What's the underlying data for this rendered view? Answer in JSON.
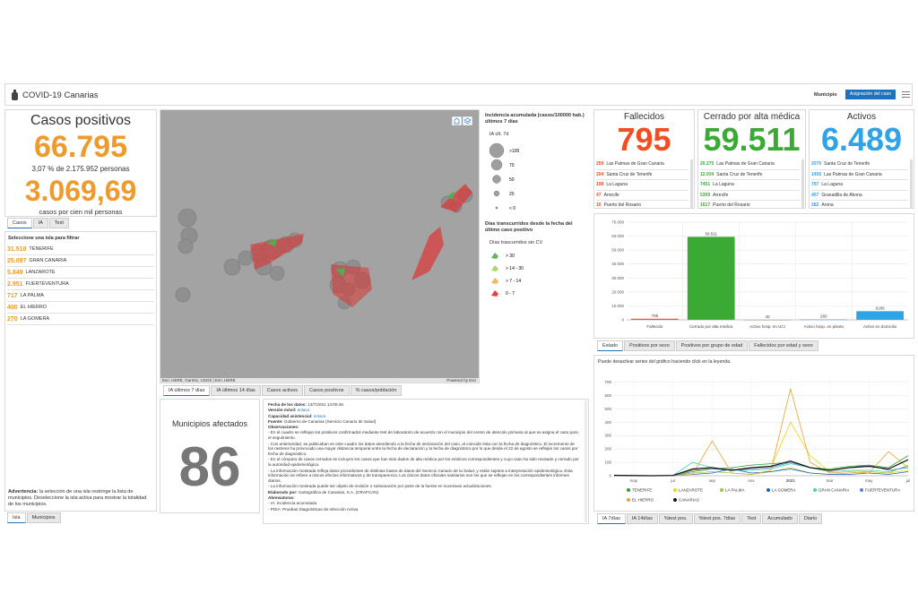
{
  "header": {
    "title": "COVID-19 Canarias",
    "filter_label": "Municipio",
    "button": "Asignación del caso"
  },
  "casos": {
    "title": "Casos positivos",
    "total": "66.795",
    "pct": "3,07 % de 2.175.952 personas",
    "rate": "3.069,69",
    "rate_label": "casos por cien mil personas",
    "color": "#ef9a2d",
    "tabs": [
      "Casos",
      "IA",
      "Test"
    ]
  },
  "islands": {
    "title": "Seleccione una isla para filtrar",
    "color": "#ef9a2d",
    "rows": [
      [
        "31.510",
        "TENERIFE"
      ],
      [
        "25.097",
        "GRAN CANARIA"
      ],
      [
        "5.849",
        "LANZAROTE"
      ],
      [
        "2.951",
        "FUERTEVENTURA"
      ],
      [
        "717",
        "LA PALMA"
      ],
      [
        "400",
        "EL HIERRO"
      ],
      [
        "270",
        "LA GOMERA"
      ]
    ],
    "warning_label": "Advertencia:",
    "warning": "la selección de una isla restringe la lista de municipios. Deseleccione la isla activa para mostrar la totalidad de los municipios.",
    "tabs": [
      "Isla",
      "Municipios"
    ]
  },
  "map": {
    "legend1_title": "Incidencia acumulada (casos/100000 hab.) últimos 7 días",
    "legend1_sub": "IA últ. 7d",
    "legend1_items": [
      ">100",
      "70",
      "50",
      "20",
      "< 0"
    ],
    "legend2_title": "Días transcurridos desde la fecha del último caso positivo",
    "legend2_sub": "Días trascurridos sin CV",
    "legend2_items": [
      {
        "label": "> 30",
        "color": "#5cb85c"
      },
      {
        "label": "> 14 - 30",
        "color": "#a9d86e"
      },
      {
        "label": "> 7 - 14",
        "color": "#f6b26b"
      },
      {
        "label": "0 - 7",
        "color": "#e8423f"
      }
    ],
    "attribution": "Esri, HERE, Garmin, USGS | Esri, HERE",
    "powered": "Powered by Esri",
    "tabs": [
      "IA últimos 7 días",
      "IA últimos 14 días",
      "Casos activos",
      "Casos positivos",
      "% casos/población"
    ]
  },
  "municipios": {
    "title": "Municipios afectados",
    "value": "86"
  },
  "info": {
    "lines": [
      {
        "label": "Fecha de los datos:",
        "text": "14/7/2021 14:00:48."
      },
      {
        "label": "Versión móvil:",
        "text": "enlace."
      },
      {
        "label": "Capacidad asistencial:",
        "text": "enlace."
      },
      {
        "label": "Fuente:",
        "text": "Gobierno de Canarias (Servicio Canario de Salud)"
      },
      {
        "label": "Observaciones:"
      },
      {
        "text": "- En el cuadro se reflejan los positivos confirmados mediante test de laboratorio de acuerdo con el municipio del centro de atención primaria al que se asigna el caso para el seguimiento."
      },
      {
        "text": "- Con anterioridad, se publicaban en este cuadro los datos atendiendo a la fecha de declaración del caso, al coincidir ésta con la fecha de diagnóstico. El incremento de los rastreos ha provocado una mayor distancia temporal entre la fecha de declaración y la fecha de diagnóstico por lo que desde el 22 de agosto se reflejan los casos por fecha de diagnóstico."
      },
      {
        "text": "- En el cómputo de casos cerrados se incluyen los casos que han sido dados de alta médica por los médicos correspondientes y cuyo caso ha sido revisado y cerrado por la autoridad epidemiológica."
      },
      {
        "text": "- La información mostrada refleja datos procedentes de distintas bases de datos del Servicio Canario de la Salud, y están sujetos a interpretación epidemiológica. Esta información se refiere a únicos efectos informativos y de transparencia. Los únicos datos oficiales sanitarios son los que se reflejan en los correspondientes informes diarios."
      },
      {
        "text": "- La información mostrada puede ser objeto de revisión o subsanación por parte de la fuente en sucesivas actualizaciones."
      },
      {
        "label": "Elaborado por:",
        "text": "Cartográfica de Canarias, S.A. (GRAFCAN)"
      },
      {
        "label": "Abreviaturas:"
      },
      {
        "text": "- IA: Incidencia acumulada"
      },
      {
        "text": "- PDIA: Pruebas Diagnósticas de Infección Activa"
      }
    ]
  },
  "kpis": [
    {
      "title": "Fallecidos",
      "value": "795",
      "color": "#f04e23",
      "rows": [
        [
          "259",
          "Las Palmas de Gran Canaria"
        ],
        [
          "204",
          "Santa Cruz de Tenerife"
        ],
        [
          "198",
          "La Laguna"
        ],
        [
          "47",
          "Arrecife"
        ],
        [
          "10",
          "Puerto del Rosario"
        ]
      ]
    },
    {
      "title": "Cerrado por alta médica",
      "value": "59.511",
      "color": "#3aaa35",
      "rows": [
        [
          "20.275",
          "Las Palmas de Gran Canaria"
        ],
        [
          "12.934",
          "Santa Cruz de Tenerife"
        ],
        [
          "7451",
          "La Laguna"
        ],
        [
          "5309",
          "Arrecife"
        ],
        [
          "1617",
          "Puerto del Rosario"
        ]
      ]
    },
    {
      "title": "Activos",
      "value": "6.489",
      "color": "#2ea3e8",
      "rows": [
        [
          "2070",
          "Santa Cruz de Tenerife"
        ],
        [
          "1456",
          "Las Palmas de Gran Canaria"
        ],
        [
          "797",
          "La Laguna"
        ],
        [
          "407",
          "Granadilla de Abona"
        ],
        [
          "282",
          "Arona"
        ]
      ]
    }
  ],
  "chart_data": [
    {
      "type": "bar",
      "categories": [
        "Fallecido",
        "Cerrado por alta médica",
        "Activo hosp. en UCI",
        "Activo hosp. en planta",
        "Activo en domicilio"
      ],
      "values": [
        795,
        59511,
        40,
        260,
        6189
      ],
      "value_labels": [
        "795",
        "59.511",
        "40",
        "260",
        "6189"
      ],
      "colors": [
        "#f04e23",
        "#3aaa35",
        "#8bc34a",
        "#2ea3e8",
        "#2ea3e8"
      ],
      "ylim": [
        0,
        70000
      ],
      "yticks": [
        0,
        {
          "value": 10000,
          "label": "10.000"
        },
        {
          "value": 20000,
          "label": "20.000"
        },
        {
          "value": 30000,
          "label": "30.000"
        },
        {
          "value": 40000,
          "label": "40.000"
        },
        {
          "value": 50000,
          "label": "50.000"
        },
        {
          "value": 60000,
          "label": "60.000"
        },
        {
          "value": 70000,
          "label": "70.000"
        }
      ],
      "grid": true,
      "tabs": [
        "Estado",
        "Positivos por sexo",
        "Positivos por grupo de edad",
        "Fallecidos por edad y sexo"
      ]
    },
    {
      "type": "line",
      "note": "Puede desactivar series del gráfico haciendo click en la leyenda.",
      "categories": [
        null,
        "may",
        null,
        "jul",
        null,
        "sep",
        null,
        "nov",
        null,
        "2021",
        null,
        "mar",
        null,
        "may",
        null,
        "jul"
      ],
      "series": [
        {
          "name": "TENERIFE",
          "color": "#2e9e2e",
          "values": [
            5,
            2,
            1,
            3,
            40,
            50,
            60,
            80,
            90,
            100,
            60,
            50,
            70,
            80,
            60,
            150
          ]
        },
        {
          "name": "LANZAROTE",
          "color": "#e6d80f",
          "values": [
            5,
            1,
            0,
            2,
            30,
            60,
            40,
            50,
            60,
            400,
            150,
            30,
            40,
            30,
            20,
            40
          ]
        },
        {
          "name": "LA PALMA",
          "color": "#9ccc3c",
          "values": [
            2,
            0,
            0,
            1,
            20,
            30,
            20,
            10,
            30,
            60,
            20,
            10,
            20,
            30,
            20,
            80
          ]
        },
        {
          "name": "LA GOMERA",
          "color": "#1f5fbf",
          "values": [
            0,
            0,
            0,
            0,
            10,
            20,
            50,
            20,
            30,
            50,
            20,
            10,
            10,
            20,
            10,
            30
          ]
        },
        {
          "name": "GRAN CANARIA",
          "color": "#3dd6b0",
          "values": [
            3,
            1,
            0,
            2,
            100,
            60,
            40,
            40,
            50,
            90,
            60,
            30,
            40,
            40,
            30,
            70
          ]
        },
        {
          "name": "FUERTEVENTURA",
          "color": "#5b7fd6",
          "values": [
            2,
            0,
            0,
            1,
            30,
            50,
            40,
            50,
            60,
            100,
            60,
            40,
            60,
            80,
            40,
            60
          ]
        },
        {
          "name": "EL HIERRO",
          "color": "#f0a030",
          "values": [
            0,
            0,
            0,
            0,
            10,
            260,
            20,
            10,
            40,
            650,
            100,
            20,
            30,
            20,
            180,
            60
          ]
        },
        {
          "name": "CANARIAS",
          "color": "#111111",
          "values": [
            3,
            1,
            0,
            2,
            50,
            60,
            40,
            60,
            70,
            110,
            60,
            40,
            60,
            70,
            50,
            120
          ]
        }
      ],
      "ylim": [
        0,
        750
      ],
      "yticks": [
        0,
        100,
        200,
        300,
        400,
        500,
        600,
        700
      ],
      "grid": true,
      "tabs": [
        "IA 7días",
        "IA 14días",
        "%test pos.",
        "%test pos. 7días",
        "Test",
        "Acumulado",
        "Diario"
      ]
    }
  ]
}
